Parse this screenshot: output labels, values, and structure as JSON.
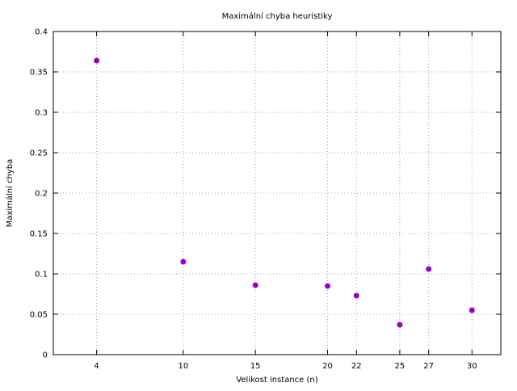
{
  "chart_data": {
    "type": "scatter",
    "title": "Maximální chyba heuristiky",
    "xlabel": "Velikost instance (n)",
    "ylabel": "Maximální chyba",
    "xlim": [
      1,
      32
    ],
    "ylim": [
      0,
      0.4
    ],
    "x_ticks": [
      4,
      10,
      15,
      20,
      22,
      25,
      27,
      30
    ],
    "y_ticks": [
      0,
      0.05,
      0.1,
      0.15,
      0.2,
      0.25,
      0.3,
      0.35,
      0.4
    ],
    "y_tick_labels": [
      "0",
      "0.05",
      "0.1",
      "0.15",
      "0.2",
      "0.25",
      "0.3",
      "0.35",
      "0.4"
    ],
    "grid": true,
    "legend": "none",
    "point_color": "#9400d3",
    "series": [
      {
        "x": [
          4,
          10,
          15,
          20,
          22,
          25,
          27,
          30
        ],
        "y": [
          0.364,
          0.115,
          0.086,
          0.085,
          0.073,
          0.037,
          0.106,
          0.055
        ]
      }
    ]
  }
}
